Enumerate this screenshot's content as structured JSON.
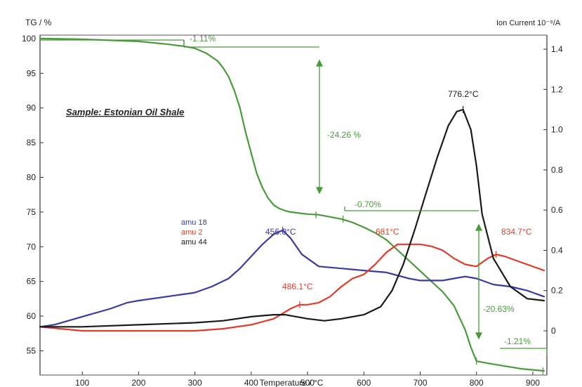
{
  "chart_data": {
    "type": "line",
    "title": "",
    "sample_label": "Sample: Estonian Oil Shale",
    "xlabel": "Temperature / °C",
    "ylabel_left": "TG  / %",
    "ylabel_right": "Ion Current 10⁻⁹/A",
    "xlim": [
      25,
      925
    ],
    "ylim_left": [
      51.5,
      100.5
    ],
    "ylim_right": [
      -0.22,
      1.47
    ],
    "x_ticks": [
      100,
      200,
      300,
      400,
      500,
      600,
      700,
      800,
      900
    ],
    "y_ticks_left": [
      55,
      60,
      65,
      70,
      75,
      80,
      85,
      90,
      95,
      100
    ],
    "y_ticks_right": [
      0,
      0.2,
      0.4,
      0.6,
      0.8,
      1.0,
      1.2,
      1.4
    ],
    "y_tick_labels_right": [
      "0",
      "0.2",
      "0.4",
      "0.6",
      "0.8",
      "1.0",
      "1.2",
      "1.4"
    ],
    "grid": false,
    "legend_position": "center-left",
    "colors": {
      "tg": "#4a9a3c",
      "amu18": "#3a3aa0",
      "amu2": "#e03c28",
      "amu44": "#1a1a1a",
      "annotation": "#4a9a3c"
    },
    "series": [
      {
        "name": "TG",
        "axis": "left",
        "x": [
          25,
          100,
          200,
          250,
          280,
          300,
          320,
          340,
          350,
          360,
          370,
          380,
          390,
          400,
          410,
          420,
          430,
          440,
          450,
          460,
          470,
          480,
          490,
          500,
          520,
          540,
          560,
          580,
          600,
          620,
          640,
          660,
          680,
          700,
          720,
          740,
          760,
          780,
          790,
          800,
          820,
          850,
          880,
          920
        ],
        "y": [
          100,
          99.9,
          99.6,
          99.2,
          98.9,
          98.6,
          97.9,
          96.8,
          95.8,
          94.5,
          92.5,
          90.0,
          86.5,
          83.5,
          80.5,
          78.5,
          77.0,
          76.0,
          75.5,
          75.2,
          75.0,
          74.9,
          74.8,
          74.7,
          74.6,
          74.3,
          74.0,
          73.5,
          72.8,
          72.0,
          71.0,
          69.5,
          68.0,
          66.5,
          65.0,
          63.5,
          61.5,
          58.0,
          55.5,
          53.5,
          53.2,
          52.8,
          52.4,
          52.1
        ]
      },
      {
        "name": "amu 18",
        "axis": "right",
        "x": [
          25,
          50,
          100,
          150,
          180,
          200,
          250,
          300,
          330,
          360,
          380,
          400,
          420,
          440,
          456,
          470,
          490,
          520,
          560,
          600,
          640,
          680,
          700,
          740,
          760,
          780,
          800,
          830,
          860,
          890,
          920
        ],
        "y": [
          0.02,
          0.03,
          0.07,
          0.11,
          0.14,
          0.15,
          0.17,
          0.19,
          0.22,
          0.26,
          0.31,
          0.37,
          0.43,
          0.48,
          0.5,
          0.46,
          0.38,
          0.32,
          0.31,
          0.3,
          0.29,
          0.26,
          0.25,
          0.25,
          0.26,
          0.27,
          0.26,
          0.23,
          0.22,
          0.2,
          0.17
        ]
      },
      {
        "name": "amu 2",
        "axis": "right",
        "x": [
          25,
          100,
          200,
          300,
          350,
          400,
          440,
          470,
          486,
          500,
          520,
          540,
          560,
          580,
          600,
          620,
          640,
          660,
          681,
          700,
          720,
          740,
          760,
          780,
          800,
          820,
          834.7,
          850,
          880,
          920
        ],
        "y": [
          0.02,
          0.0,
          0.0,
          0.0,
          0.01,
          0.03,
          0.06,
          0.11,
          0.13,
          0.13,
          0.14,
          0.17,
          0.22,
          0.26,
          0.28,
          0.33,
          0.39,
          0.43,
          0.43,
          0.43,
          0.42,
          0.4,
          0.36,
          0.33,
          0.32,
          0.36,
          0.38,
          0.37,
          0.34,
          0.3
        ]
      },
      {
        "name": "amu 44",
        "axis": "right",
        "x": [
          25,
          100,
          200,
          300,
          350,
          400,
          440,
          460,
          480,
          500,
          530,
          560,
          600,
          630,
          650,
          670,
          690,
          710,
          730,
          750,
          765,
          776.2,
          790,
          800,
          810,
          830,
          860,
          890,
          920
        ],
        "y": [
          0.02,
          0.02,
          0.03,
          0.04,
          0.05,
          0.07,
          0.08,
          0.08,
          0.07,
          0.06,
          0.05,
          0.06,
          0.08,
          0.12,
          0.2,
          0.33,
          0.5,
          0.68,
          0.86,
          1.02,
          1.09,
          1.1,
          1.0,
          0.82,
          0.58,
          0.36,
          0.22,
          0.16,
          0.15
        ]
      }
    ],
    "annotations": {
      "step1_pct": "-1.11%",
      "step2_pct": "-24.26 %",
      "step3_pct": "-0.70%",
      "step4_pct": "-20.63%",
      "step5_pct": "-1.21%",
      "peak_amu44": "776.2°C",
      "peak_amu18": "456.0°C",
      "peak_amu2_681": "681°C",
      "peak_amu2_834": "834.7°C",
      "peak_amu2_486": "486.1°C"
    }
  }
}
